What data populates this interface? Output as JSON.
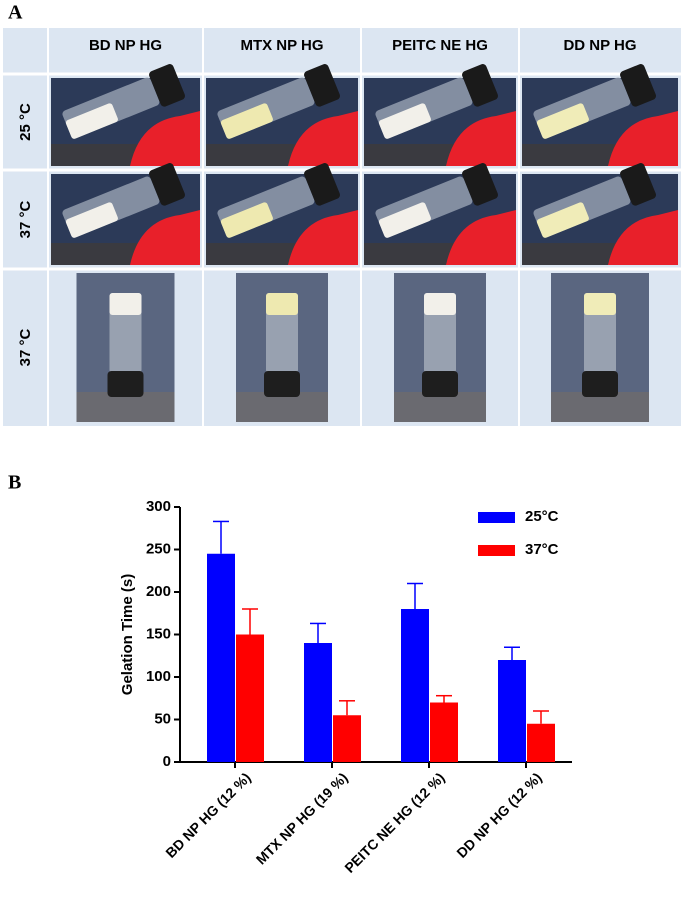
{
  "panel_a": {
    "label": "A",
    "columns": [
      "BD NP HG",
      "MTX NP HG",
      "PEITC NE HG",
      "DD NP HG"
    ],
    "rows": [
      "25 °C",
      "37 °C",
      "37 °C"
    ]
  },
  "chart_data": {
    "type": "bar",
    "panel_label": "B",
    "ylabel": "Gelation Time (s)",
    "categories": [
      "BD NP HG (12 %)",
      "MTX NP HG (19 %)",
      "PEITC NE HG (12 %)",
      "DD NP HG (12 %)"
    ],
    "series": [
      {
        "name": "25°C",
        "color": "#0000ff",
        "values": [
          245,
          140,
          180,
          120
        ],
        "errors": [
          38,
          23,
          30,
          15
        ]
      },
      {
        "name": "37°C",
        "color": "#ff0000",
        "values": [
          150,
          55,
          70,
          45
        ],
        "errors": [
          30,
          17,
          8,
          15
        ]
      }
    ],
    "ylim": [
      0,
      300
    ],
    "yticks": [
      0,
      50,
      100,
      150,
      200,
      250,
      300
    ],
    "legend": "upper right"
  }
}
